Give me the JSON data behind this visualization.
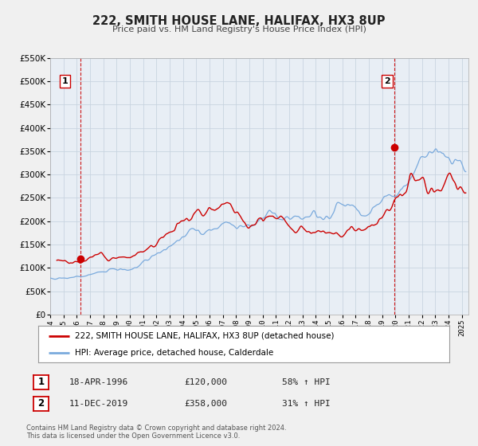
{
  "title": "222, SMITH HOUSE LANE, HALIFAX, HX3 8UP",
  "subtitle": "Price paid vs. HM Land Registry's House Price Index (HPI)",
  "red_label": "222, SMITH HOUSE LANE, HALIFAX, HX3 8UP (detached house)",
  "blue_label": "HPI: Average price, detached house, Calderdale",
  "sale1_date": "18-APR-1996",
  "sale1_price": 120000,
  "sale1_hpi": "58% ↑ HPI",
  "sale2_date": "11-DEC-2019",
  "sale2_price": 358000,
  "sale2_hpi": "31% ↑ HPI",
  "footer1": "Contains HM Land Registry data © Crown copyright and database right 2024.",
  "footer2": "This data is licensed under the Open Government Licence v3.0.",
  "ylim": [
    0,
    550000
  ],
  "yticks": [
    0,
    50000,
    100000,
    150000,
    200000,
    250000,
    300000,
    350000,
    400000,
    450000,
    500000,
    550000
  ],
  "xlim_start": 1994.0,
  "xlim_end": 2025.5,
  "sale1_year": 1996.29,
  "sale2_year": 2019.94,
  "bg_color": "#f0f0f0",
  "plot_bg": "#e8eef5",
  "red_color": "#cc0000",
  "blue_color": "#7aaadd",
  "grid_color": "#c8d4e0"
}
